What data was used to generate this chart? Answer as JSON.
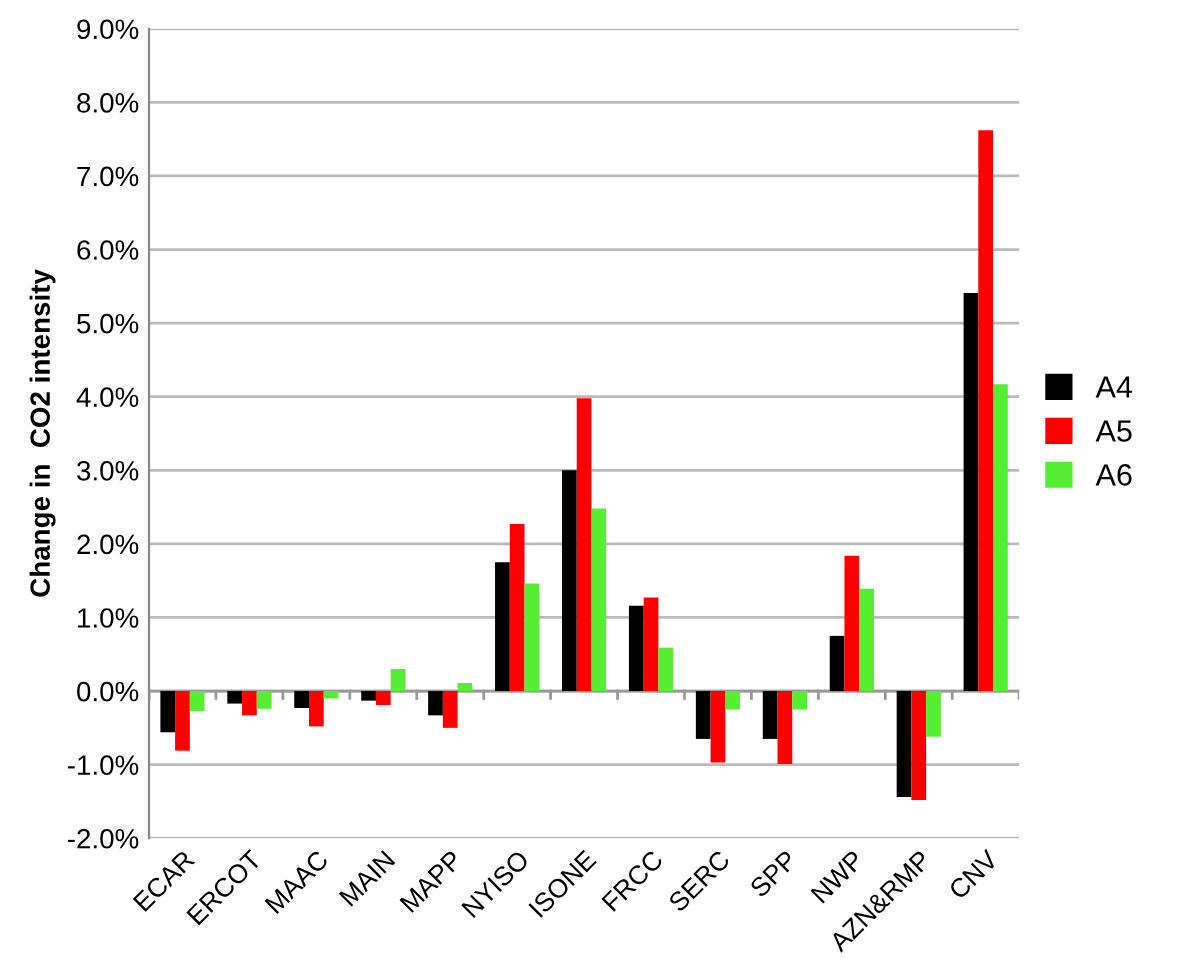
{
  "chart_data": {
    "type": "bar",
    "ylabel": "Change in  CO2 intensity",
    "categories": [
      "ECAR",
      "ERCOT",
      "MAAC",
      "MAIN",
      "MAPP",
      "NYISO",
      "ISONE",
      "FRCC",
      "SERC",
      "SPP",
      "NWP",
      "AZN&RMP",
      "CNV"
    ],
    "series": [
      {
        "name": "A4",
        "color": "#000000",
        "values": [
          -0.56,
          -0.17,
          -0.23,
          -0.13,
          -0.33,
          1.75,
          3.0,
          1.16,
          -0.65,
          -0.65,
          0.75,
          -1.44,
          5.41
        ]
      },
      {
        "name": "A5",
        "color": "#ff0000",
        "values": [
          -0.81,
          -0.33,
          -0.48,
          -0.19,
          -0.5,
          2.27,
          3.98,
          1.27,
          -0.97,
          -0.99,
          1.84,
          -1.48,
          7.62
        ]
      },
      {
        "name": "A6",
        "color": "#55ee33",
        "values": [
          -0.27,
          -0.24,
          -0.1,
          0.3,
          0.11,
          1.46,
          2.48,
          0.59,
          -0.25,
          -0.25,
          1.39,
          -0.62,
          4.17
        ]
      }
    ],
    "ylim": [
      -2,
      9
    ],
    "yticks": [
      {
        "value": -2,
        "label": "-2.0%"
      },
      {
        "value": -1,
        "label": "-1.0%"
      },
      {
        "value": 0,
        "label": "0.0%"
      },
      {
        "value": 1,
        "label": "1.0%"
      },
      {
        "value": 2,
        "label": "2.0%"
      },
      {
        "value": 3,
        "label": "3.0%"
      },
      {
        "value": 4,
        "label": "4.0%"
      },
      {
        "value": 5,
        "label": "5.0%"
      },
      {
        "value": 6,
        "label": "6.0%"
      },
      {
        "value": 7,
        "label": "7.0%"
      },
      {
        "value": 8,
        "label": "8.0%"
      },
      {
        "value": 9,
        "label": "9.0%"
      }
    ],
    "grid": "y",
    "legend": "right"
  }
}
